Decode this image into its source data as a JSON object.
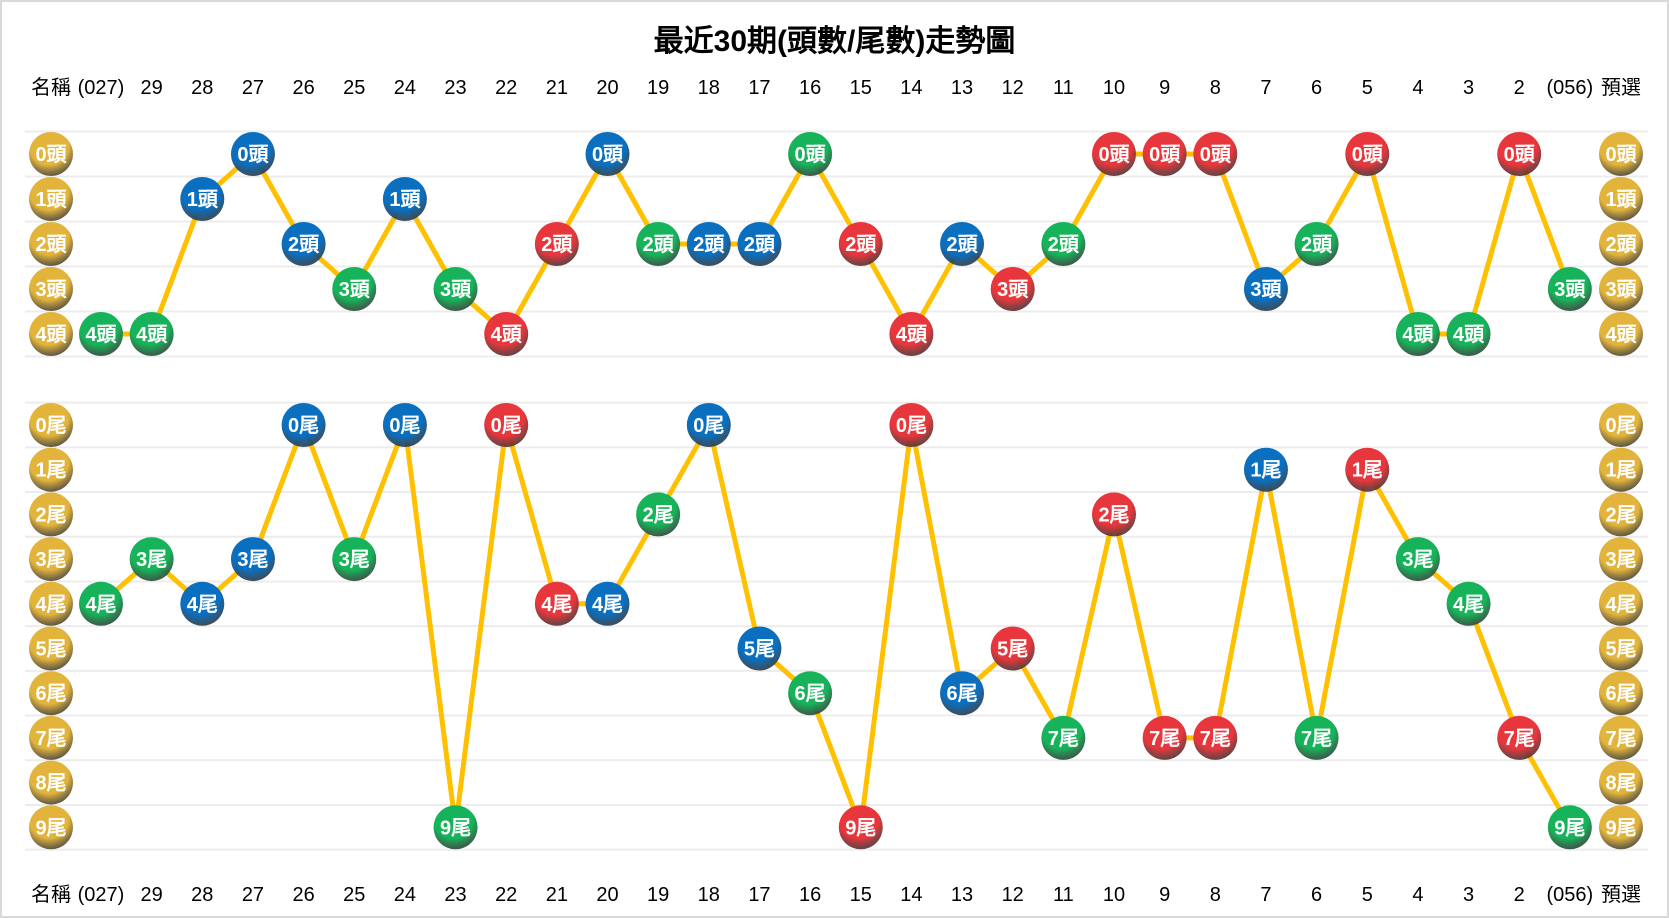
{
  "chart_data": {
    "type": "line",
    "title": "最近30期(頭數/尾數)走勢圖",
    "name_label": "名稱",
    "forecast_label": "預選",
    "columns": [
      "(027)",
      "29",
      "28",
      "27",
      "26",
      "25",
      "24",
      "23",
      "22",
      "21",
      "20",
      "19",
      "18",
      "17",
      "16",
      "15",
      "14",
      "13",
      "12",
      "11",
      "10",
      "9",
      "8",
      "7",
      "6",
      "5",
      "4",
      "3",
      "2",
      "(056)"
    ],
    "line_color": "#FFC000",
    "colors": {
      "red": "#e8373c",
      "blue": "#0b6fc0",
      "green": "#17b35a",
      "gold": "#e2b43c"
    },
    "series": [
      {
        "name": "頭數",
        "suffix": "頭",
        "levels": [
          0,
          1,
          2,
          3,
          4
        ],
        "values": [
          4,
          4,
          1,
          0,
          2,
          3,
          1,
          3,
          4,
          2,
          0,
          2,
          2,
          2,
          0,
          2,
          4,
          2,
          3,
          2,
          0,
          0,
          0,
          3,
          2,
          0,
          4,
          4,
          0,
          3
        ],
        "ball_colors": [
          "green",
          "green",
          "blue",
          "blue",
          "blue",
          "green",
          "blue",
          "green",
          "red",
          "red",
          "blue",
          "green",
          "blue",
          "blue",
          "green",
          "red",
          "red",
          "blue",
          "red",
          "green",
          "red",
          "red",
          "red",
          "blue",
          "green",
          "red",
          "green",
          "green",
          "red",
          "green"
        ]
      },
      {
        "name": "尾數",
        "suffix": "尾",
        "levels": [
          0,
          1,
          2,
          3,
          4,
          5,
          6,
          7,
          8,
          9
        ],
        "values": [
          4,
          3,
          4,
          3,
          0,
          3,
          0,
          9,
          0,
          4,
          4,
          2,
          0,
          5,
          6,
          9,
          0,
          6,
          5,
          7,
          2,
          7,
          7,
          1,
          7,
          1,
          3,
          4,
          7,
          9
        ],
        "ball_colors": [
          "green",
          "green",
          "blue",
          "blue",
          "blue",
          "green",
          "blue",
          "green",
          "red",
          "red",
          "blue",
          "green",
          "blue",
          "blue",
          "green",
          "red",
          "red",
          "blue",
          "red",
          "green",
          "red",
          "red",
          "red",
          "blue",
          "green",
          "red",
          "green",
          "green",
          "red",
          "green"
        ]
      }
    ]
  }
}
